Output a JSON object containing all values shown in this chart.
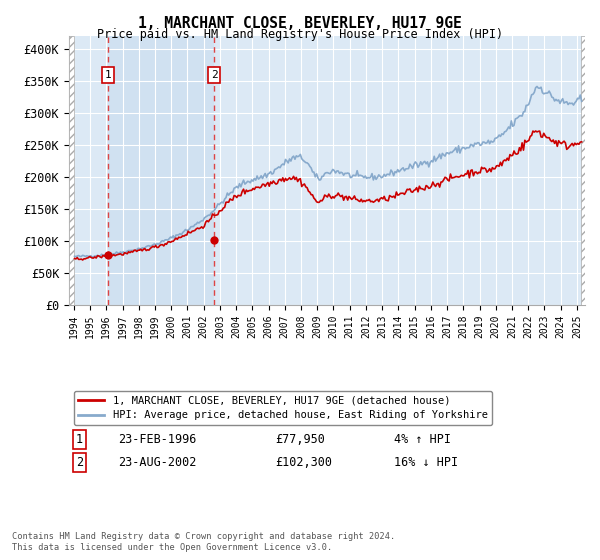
{
  "title": "1, MARCHANT CLOSE, BEVERLEY, HU17 9GE",
  "subtitle": "Price paid vs. HM Land Registry's House Price Index (HPI)",
  "ylim": [
    0,
    420000
  ],
  "yticks": [
    0,
    50000,
    100000,
    150000,
    200000,
    250000,
    300000,
    350000,
    400000
  ],
  "ytick_labels": [
    "£0",
    "£50K",
    "£100K",
    "£150K",
    "£200K",
    "£250K",
    "£300K",
    "£350K",
    "£400K"
  ],
  "xlim_start": 1993.7,
  "xlim_end": 2025.5,
  "background_color": "#ffffff",
  "plot_bg_color": "#dce9f5",
  "highlight_bg_color": "#ccdff0",
  "grid_color": "#ffffff",
  "sale1_x": 1996.12,
  "sale1_y": 77950,
  "sale1_label": "1",
  "sale1_date": "23-FEB-1996",
  "sale1_price": "£77,950",
  "sale1_hpi": "4% ↑ HPI",
  "sale2_x": 2002.64,
  "sale2_y": 102300,
  "sale2_label": "2",
  "sale2_date": "23-AUG-2002",
  "sale2_price": "£102,300",
  "sale2_hpi": "16% ↓ HPI",
  "red_line_color": "#cc0000",
  "blue_line_color": "#88aacc",
  "dashed_line_color": "#dd4444",
  "legend_entry1": "1, MARCHANT CLOSE, BEVERLEY, HU17 9GE (detached house)",
  "legend_entry2": "HPI: Average price, detached house, East Riding of Yorkshire",
  "footnote": "Contains HM Land Registry data © Crown copyright and database right 2024.\nThis data is licensed under the Open Government Licence v3.0."
}
